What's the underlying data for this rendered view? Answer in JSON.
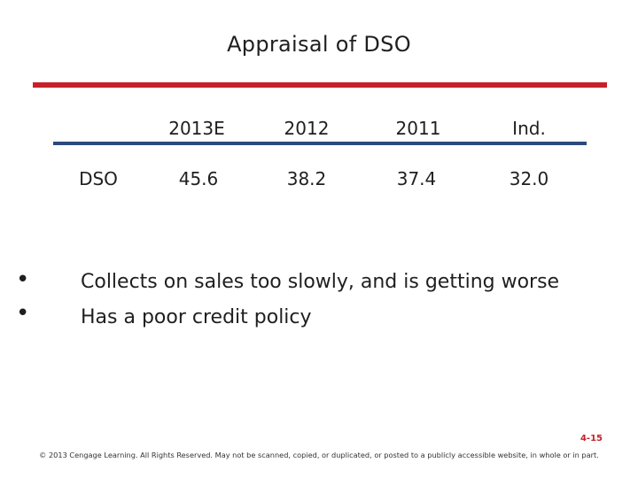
{
  "title": "Appraisal of DSO",
  "table": {
    "columns": [
      "2013E",
      "2012",
      "2011",
      "Ind."
    ],
    "row_label": "DSO",
    "values": [
      "45.6",
      "38.2",
      "37.4",
      "32.0"
    ]
  },
  "bullets": [
    "Collects on sales too slowly, and is getting worse",
    "Has a poor credit policy"
  ],
  "bullet_glyph": "•",
  "footer": {
    "slide_number": "4-15",
    "copyright": "© 2013 Cengage Learning. All Rights Reserved. May not be scanned, copied, or duplicated, or posted to a publicly accessible website, in whole or in part."
  },
  "colors": {
    "accent_red": "#c8202a",
    "rule_blue": "#2b4a7c"
  }
}
